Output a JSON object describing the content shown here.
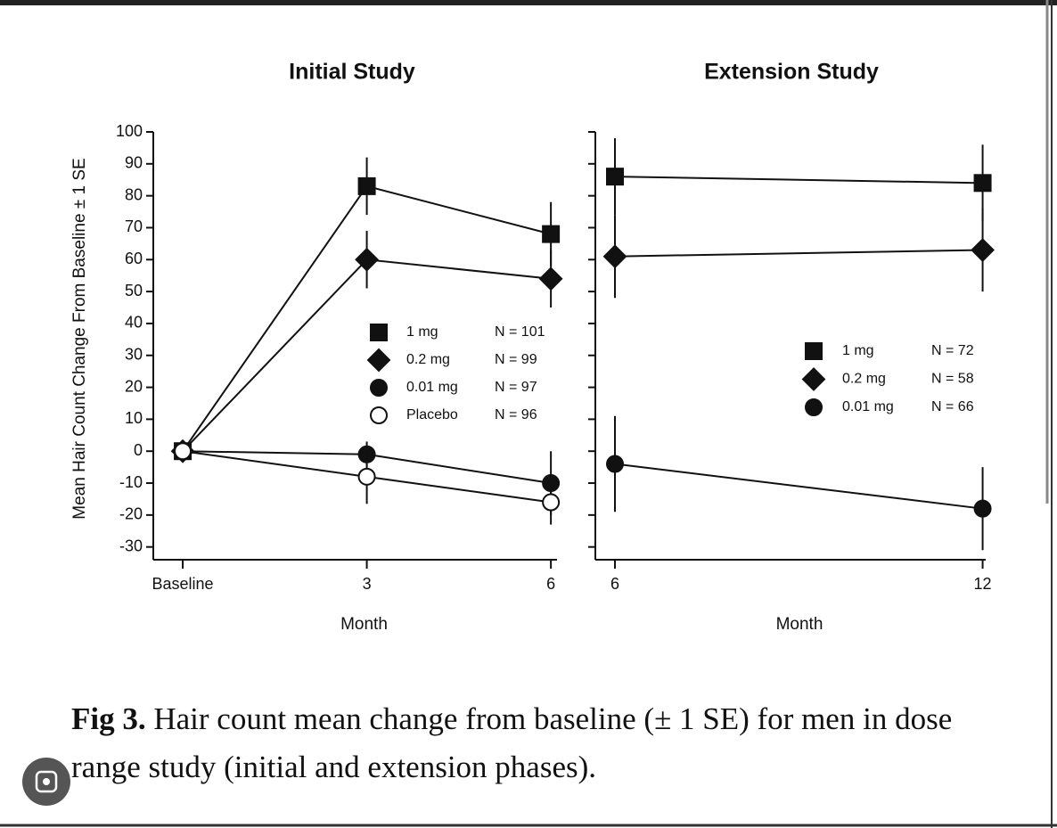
{
  "chart_data": [
    {
      "type": "line",
      "title": "Initial Study",
      "ylabel": "Mean Hair Count Change From Baseline ± 1 SE",
      "xlabel": "Month",
      "x": [
        0,
        3,
        6
      ],
      "xlim": [
        -0.48,
        6.1
      ],
      "xticks": [
        {
          "value": 0,
          "label": "Baseline"
        },
        3,
        6
      ],
      "ylim": [
        -34,
        100
      ],
      "yticks": [
        100,
        90,
        80,
        70,
        60,
        50,
        40,
        30,
        20,
        10,
        0,
        -10,
        -20,
        -30
      ],
      "ytick_labels": true,
      "series": [
        {
          "name": "1 mg",
          "n_label": "N = 101",
          "marker": "square",
          "color": "#111111",
          "fill": "#111111",
          "values": [
            0,
            83,
            68
          ],
          "errors": [
            null,
            9,
            10
          ]
        },
        {
          "name": "0.2 mg",
          "n_label": "N = 99",
          "marker": "diamond",
          "color": "#111111",
          "fill": "#111111",
          "values": [
            0,
            60,
            54
          ],
          "errors": [
            null,
            9,
            9
          ]
        },
        {
          "name": "0.01 mg",
          "n_label": "N = 97",
          "marker": "circle",
          "color": "#111111",
          "fill": "#111111",
          "values": [
            0,
            -1,
            -10
          ],
          "errors": [
            null,
            4,
            10
          ]
        },
        {
          "name": "Placebo",
          "n_label": "N = 96",
          "marker": "circle",
          "color": "#111111",
          "fill": "#ffffff",
          "values": [
            0,
            -8,
            -16
          ],
          "errors": [
            null,
            8.5,
            7
          ]
        }
      ]
    },
    {
      "type": "line",
      "title": "Extension Study",
      "xlabel": "Month",
      "x": [
        6,
        12
      ],
      "xlim": [
        5.68,
        12.05
      ],
      "xticks": [
        6,
        12
      ],
      "ylim": [
        -34,
        100
      ],
      "yticks": [
        100,
        90,
        80,
        70,
        60,
        50,
        40,
        30,
        20,
        10,
        0,
        -10,
        -20,
        -30
      ],
      "ytick_labels": false,
      "series": [
        {
          "name": "1 mg",
          "n_label": "N = 72",
          "marker": "square",
          "color": "#111111",
          "fill": "#111111",
          "values": [
            86,
            84
          ],
          "errors": [
            12,
            12
          ]
        },
        {
          "name": "0.2 mg",
          "n_label": "N = 58",
          "marker": "diamond",
          "color": "#111111",
          "fill": "#111111",
          "values": [
            61,
            63
          ],
          "errors": [
            13,
            13
          ]
        },
        {
          "name": "0.01 mg",
          "n_label": "N = 66",
          "marker": "circle",
          "color": "#111111",
          "fill": "#111111",
          "values": [
            -4,
            -18
          ],
          "errors": [
            15,
            13
          ]
        }
      ]
    }
  ],
  "caption": {
    "label": "Fig 3.",
    "text": "Hair count mean change from baseline (± 1 SE) for men in dose range study (initial and extension phases)."
  }
}
